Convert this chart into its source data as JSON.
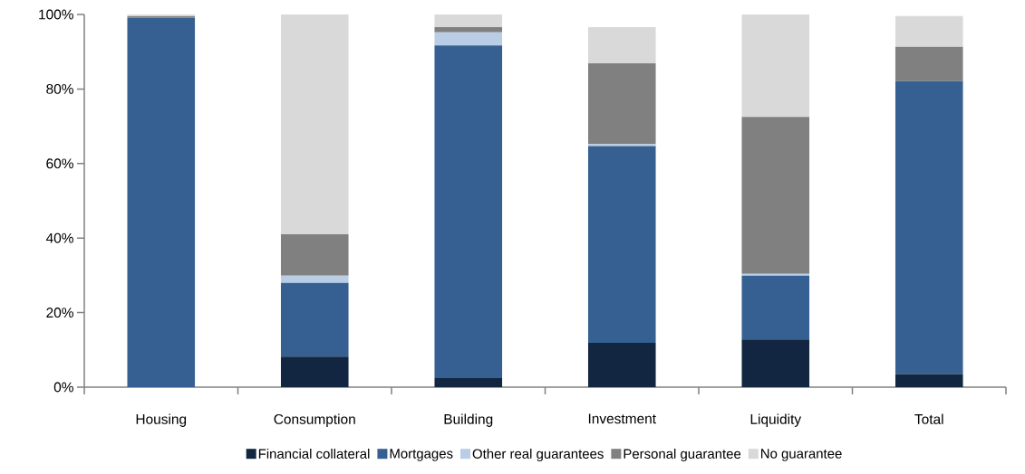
{
  "chart_data": {
    "type": "bar",
    "stacked": true,
    "categories": [
      "Housing",
      "Consumption",
      "Building",
      "Investment",
      "Liquidity",
      "Total"
    ],
    "series": [
      {
        "name": "Financial collateral",
        "color": "#122641",
        "values": [
          0,
          8.2,
          2.4,
          11.9,
          12.8,
          3.5
        ]
      },
      {
        "name": "Mortgages",
        "color": "#366092",
        "values": [
          99.1,
          19.8,
          89.3,
          52.8,
          17.1,
          78.6
        ]
      },
      {
        "name": "Other real guarantees",
        "color": "#b9cde5",
        "values": [
          0,
          1.9,
          3.5,
          0.5,
          0.5,
          0
        ]
      },
      {
        "name": "Personal guarantee",
        "color": "#808080",
        "values": [
          0.4,
          11.1,
          1.4,
          21.7,
          42.1,
          9.2
        ]
      },
      {
        "name": "No guarantee",
        "color": "#d9d9d9",
        "values": [
          0.5,
          59.0,
          3.4,
          9.7,
          27.6,
          8.3
        ]
      }
    ],
    "ylim": [
      0,
      100
    ],
    "yticks": [
      {
        "value": 0,
        "label": "0%"
      },
      {
        "value": 20,
        "label": "20%"
      },
      {
        "value": 40,
        "label": "40%"
      },
      {
        "value": 60,
        "label": "60%"
      },
      {
        "value": 80,
        "label": "80%"
      },
      {
        "value": 100,
        "label": "100%"
      }
    ],
    "grid": false,
    "legend": "bottom"
  }
}
